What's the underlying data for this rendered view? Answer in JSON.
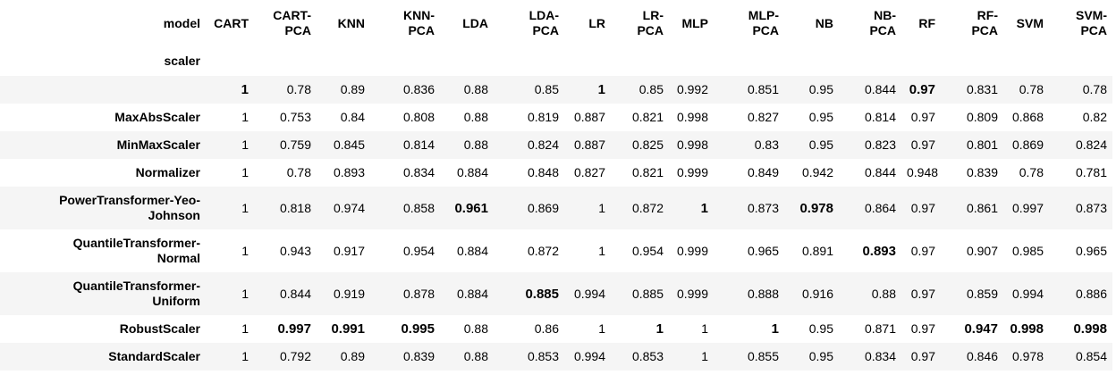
{
  "table": {
    "columns_index_name": "model",
    "rows_index_name": "scaler",
    "columns": [
      [
        "CART"
      ],
      [
        "CART-",
        "PCA"
      ],
      [
        "KNN"
      ],
      [
        "KNN-",
        "PCA"
      ],
      [
        "LDA"
      ],
      [
        "LDA-",
        "PCA"
      ],
      [
        "LR"
      ],
      [
        "LR-",
        "PCA"
      ],
      [
        "MLP"
      ],
      [
        "MLP-",
        "PCA"
      ],
      [
        "NB"
      ],
      [
        "NB-",
        "PCA"
      ],
      [
        "RF"
      ],
      [
        "RF-",
        "PCA"
      ],
      [
        "SVM"
      ],
      [
        "SVM-",
        "PCA"
      ]
    ],
    "rows": [
      {
        "label": [
          ""
        ],
        "values": [
          "1",
          "0.78",
          "0.89",
          "0.836",
          "0.88",
          "0.85",
          "1",
          "0.85",
          "0.992",
          "0.851",
          "0.95",
          "0.844",
          "0.97",
          "0.831",
          "0.78",
          "0.78"
        ],
        "bold": [
          0,
          6,
          12
        ]
      },
      {
        "label": [
          "MaxAbsScaler"
        ],
        "values": [
          "1",
          "0.753",
          "0.84",
          "0.808",
          "0.88",
          "0.819",
          "0.887",
          "0.821",
          "0.998",
          "0.827",
          "0.95",
          "0.814",
          "0.97",
          "0.809",
          "0.868",
          "0.82"
        ],
        "bold": []
      },
      {
        "label": [
          "MinMaxScaler"
        ],
        "values": [
          "1",
          "0.759",
          "0.845",
          "0.814",
          "0.88",
          "0.824",
          "0.887",
          "0.825",
          "0.998",
          "0.83",
          "0.95",
          "0.823",
          "0.97",
          "0.801",
          "0.869",
          "0.824"
        ],
        "bold": []
      },
      {
        "label": [
          "Normalizer"
        ],
        "values": [
          "1",
          "0.78",
          "0.893",
          "0.834",
          "0.884",
          "0.848",
          "0.827",
          "0.821",
          "0.999",
          "0.849",
          "0.942",
          "0.844",
          "0.948",
          "0.839",
          "0.78",
          "0.781"
        ],
        "bold": []
      },
      {
        "label": [
          "PowerTransformer-Yeo-",
          "Johnson"
        ],
        "values": [
          "1",
          "0.818",
          "0.974",
          "0.858",
          "0.961",
          "0.869",
          "1",
          "0.872",
          "1",
          "0.873",
          "0.978",
          "0.864",
          "0.97",
          "0.861",
          "0.997",
          "0.873"
        ],
        "bold": [
          4,
          8,
          10
        ]
      },
      {
        "label": [
          "QuantileTransformer-",
          "Normal"
        ],
        "values": [
          "1",
          "0.943",
          "0.917",
          "0.954",
          "0.884",
          "0.872",
          "1",
          "0.954",
          "0.999",
          "0.965",
          "0.891",
          "0.893",
          "0.97",
          "0.907",
          "0.985",
          "0.965"
        ],
        "bold": [
          11
        ]
      },
      {
        "label": [
          "QuantileTransformer-",
          "Uniform"
        ],
        "values": [
          "1",
          "0.844",
          "0.919",
          "0.878",
          "0.884",
          "0.885",
          "0.994",
          "0.885",
          "0.999",
          "0.888",
          "0.916",
          "0.88",
          "0.97",
          "0.859",
          "0.994",
          "0.886"
        ],
        "bold": [
          5
        ]
      },
      {
        "label": [
          "RobustScaler"
        ],
        "values": [
          "1",
          "0.997",
          "0.991",
          "0.995",
          "0.88",
          "0.86",
          "1",
          "1",
          "1",
          "1",
          "0.95",
          "0.871",
          "0.97",
          "0.947",
          "0.998",
          "0.998"
        ],
        "bold": [
          1,
          2,
          3,
          7,
          9,
          13,
          14,
          15
        ]
      },
      {
        "label": [
          "StandardScaler"
        ],
        "values": [
          "1",
          "0.792",
          "0.89",
          "0.839",
          "0.88",
          "0.853",
          "0.994",
          "0.853",
          "1",
          "0.855",
          "0.95",
          "0.834",
          "0.97",
          "0.846",
          "0.978",
          "0.854"
        ],
        "bold": []
      }
    ]
  }
}
